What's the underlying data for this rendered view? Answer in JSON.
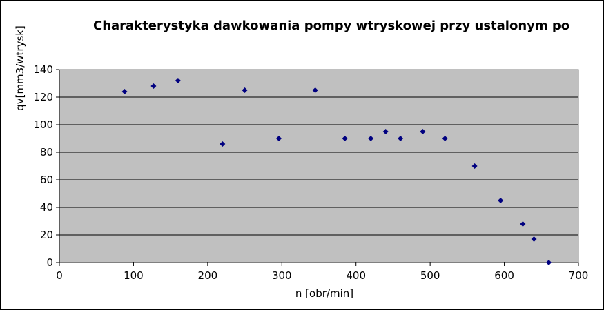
{
  "chart_data": {
    "type": "scatter",
    "title": "Charakterystyka dawkowania pompy wtryskowej przy ustalonym po",
    "xlabel": "n [obr/min]",
    "ylabel": "qv[mm3/wtrysk]",
    "xlim": [
      0,
      700
    ],
    "ylim": [
      0,
      140
    ],
    "xticks": [
      0,
      100,
      200,
      300,
      400,
      500,
      600,
      700
    ],
    "yticks": [
      0,
      20,
      40,
      60,
      80,
      100,
      120,
      140
    ],
    "grid": "horizontal",
    "legend": "none",
    "points": [
      {
        "x": 88,
        "y": 124
      },
      {
        "x": 127,
        "y": 128
      },
      {
        "x": 160,
        "y": 132
      },
      {
        "x": 220,
        "y": 86
      },
      {
        "x": 250,
        "y": 125
      },
      {
        "x": 296,
        "y": 90
      },
      {
        "x": 345,
        "y": 125
      },
      {
        "x": 385,
        "y": 90
      },
      {
        "x": 420,
        "y": 90
      },
      {
        "x": 440,
        "y": 95
      },
      {
        "x": 460,
        "y": 90
      },
      {
        "x": 490,
        "y": 95
      },
      {
        "x": 520,
        "y": 90
      },
      {
        "x": 560,
        "y": 70
      },
      {
        "x": 595,
        "y": 45
      },
      {
        "x": 625,
        "y": 28
      },
      {
        "x": 640,
        "y": 17
      },
      {
        "x": 660,
        "y": 0
      }
    ],
    "colors": {
      "plot_background": "#c0c0c0",
      "marker": "#000080",
      "gridline": "#000000"
    }
  }
}
